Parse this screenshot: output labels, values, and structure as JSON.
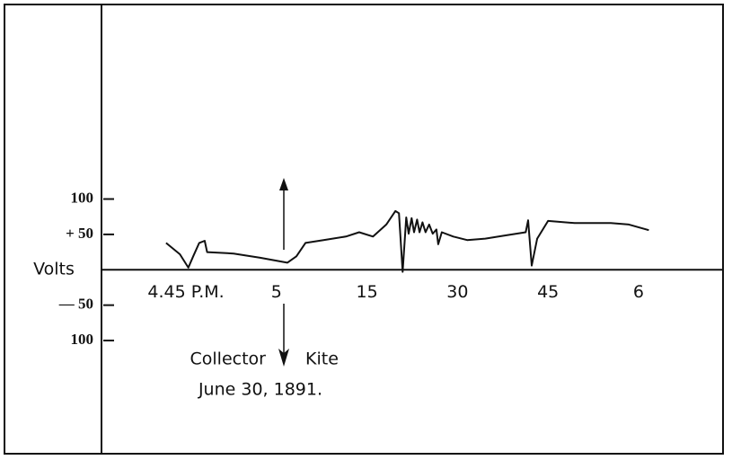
{
  "chart_data": {
    "type": "line",
    "y_label": "Volts",
    "annotations": [
      "Collector",
      "Kite",
      "June 30, 1891."
    ],
    "x": [
      41.7,
      44.0,
      45.4,
      46.2,
      47.2,
      48.1,
      48.5,
      52.9,
      57.3,
      61.8,
      63.3,
      64.8,
      67.8,
      71.5,
      73.7,
      76.0,
      78.2,
      79.7,
      80.3,
      80.9,
      81.5,
      81.9,
      82.4,
      82.8,
      83.3,
      83.7,
      84.2,
      84.7,
      85.3,
      85.9,
      86.5,
      86.8,
      87.4,
      89.3,
      91.6,
      94.6,
      97.5,
      101.3,
      101.7,
      102.3,
      103.2,
      105.0,
      109.4,
      115.4,
      118.4,
      121.7
    ],
    "values": [
      38,
      22,
      3,
      19,
      38,
      41,
      25,
      23,
      17,
      10,
      19,
      38,
      42,
      47,
      53,
      47,
      64,
      83,
      80,
      -3,
      74,
      51,
      73,
      53,
      71,
      53,
      67,
      53,
      64,
      51,
      57,
      36,
      53,
      47,
      42,
      44,
      48,
      53,
      70,
      6,
      44,
      69,
      66,
      66,
      64,
      56
    ],
    "color": "#111111",
    "xlim": [
      31,
      134
    ],
    "ylim": [
      -260,
      375
    ],
    "xticks": [
      {
        "value": 45,
        "label": "4.45 P.M."
      },
      {
        "value": 60,
        "label": "5"
      },
      {
        "value": 75,
        "label": "15"
      },
      {
        "value": 90,
        "label": "30"
      },
      {
        "value": 105,
        "label": "45"
      },
      {
        "value": 120,
        "label": "6"
      }
    ],
    "yticks": [
      100,
      {
        "value": 50,
        "label": "+ 50"
      },
      {
        "value": -50,
        "label": "— 50"
      },
      {
        "value": -100,
        "label": "100"
      }
    ]
  }
}
